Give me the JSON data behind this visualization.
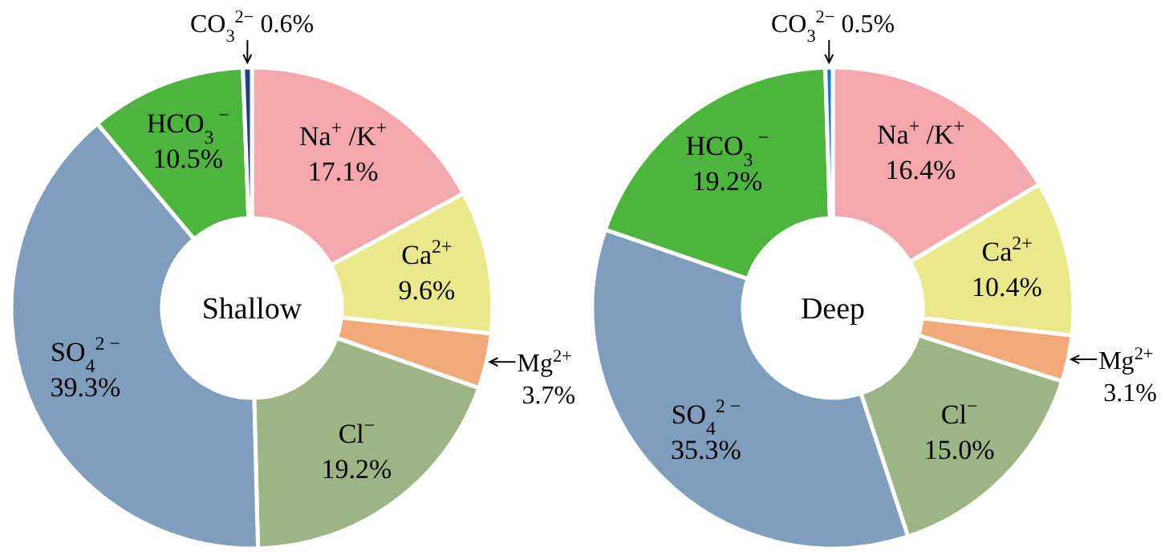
{
  "chart_data": [
    {
      "type": "donut",
      "title": "Shallow",
      "categories": [
        "Na$^{+}$ /K$^{+}$",
        "Ca$^{2+}$",
        "Mg$^{2+}$",
        "Cl$^{−}$",
        "SO$_{4}$$^{2 −}$",
        "HCO$_{3}$$^{ −}$",
        "CO$_{3}$$^{2−}$"
      ],
      "values": [
        17.1,
        9.6,
        3.7,
        19.2,
        39.3,
        10.5,
        0.6
      ],
      "value_labels": [
        "17.1%",
        "9.6%",
        "3.7%",
        "19.2%",
        "39.3%",
        "10.5%",
        "0.6%"
      ],
      "colors": [
        "#f4a7ad",
        "#e9e98b",
        "#f2a978",
        "#9db585",
        "#7f9dbd",
        "#4db53d",
        "#1f3f8a"
      ]
    },
    {
      "type": "donut",
      "title": "Deep",
      "categories": [
        "Na$^{+}$ /K$^{+}$",
        "Ca$^{2+}$",
        "Mg$^{2+}$",
        "Cl$^{−}$",
        "SO$_{4}$$^{2 −}$",
        "HCO$_{3}$$^{ −}$",
        "CO$_{3}$$^{2−}$"
      ],
      "values": [
        16.4,
        10.4,
        3.1,
        15.0,
        35.3,
        19.2,
        0.5
      ],
      "value_labels": [
        "16.4%",
        "10.4%",
        "3.1%",
        "15.0%",
        "35.3%",
        "19.2%",
        "0.5%"
      ],
      "colors": [
        "#f4a7ad",
        "#e9e98b",
        "#f2a978",
        "#9db585",
        "#7f9dbd",
        "#4db53d",
        "#1f78c8"
      ]
    }
  ]
}
